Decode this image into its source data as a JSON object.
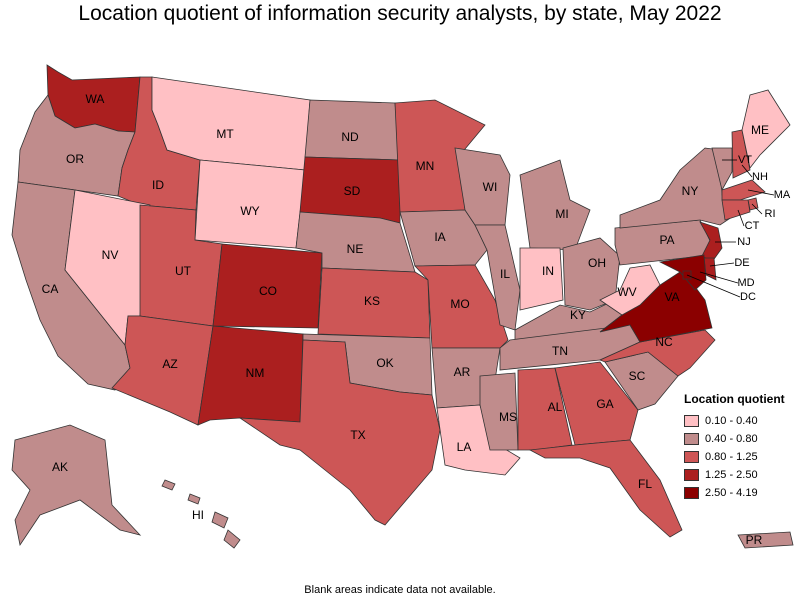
{
  "title": "Location quotient of information security analysts, by state, May 2022",
  "footnote": "Blank areas indicate data not available.",
  "legend": {
    "title": "Location quotient",
    "items": [
      {
        "label": "0.10 - 0.40",
        "color": "#ffc0c4"
      },
      {
        "label": "0.40 - 0.80",
        "color": "#c08c8c"
      },
      {
        "label": "0.80 - 1.25",
        "color": "#cd5656"
      },
      {
        "label": "1.25 - 2.50",
        "color": "#ab1f1f"
      },
      {
        "label": "2.50 - 4.19",
        "color": "#8b0000"
      }
    ]
  },
  "states": [
    {
      "abbr": "WA",
      "bin": 3
    },
    {
      "abbr": "OR",
      "bin": 1
    },
    {
      "abbr": "CA",
      "bin": 1
    },
    {
      "abbr": "ID",
      "bin": 2
    },
    {
      "abbr": "NV",
      "bin": 0
    },
    {
      "abbr": "MT",
      "bin": 0
    },
    {
      "abbr": "WY",
      "bin": 0
    },
    {
      "abbr": "UT",
      "bin": 2
    },
    {
      "abbr": "AZ",
      "bin": 2
    },
    {
      "abbr": "CO",
      "bin": 3
    },
    {
      "abbr": "NM",
      "bin": 3
    },
    {
      "abbr": "ND",
      "bin": 1
    },
    {
      "abbr": "SD",
      "bin": 3
    },
    {
      "abbr": "NE",
      "bin": 1
    },
    {
      "abbr": "KS",
      "bin": 2
    },
    {
      "abbr": "OK",
      "bin": 1
    },
    {
      "abbr": "TX",
      "bin": 2
    },
    {
      "abbr": "MN",
      "bin": 2
    },
    {
      "abbr": "IA",
      "bin": 1
    },
    {
      "abbr": "MO",
      "bin": 2
    },
    {
      "abbr": "AR",
      "bin": 1
    },
    {
      "abbr": "LA",
      "bin": 0
    },
    {
      "abbr": "WI",
      "bin": 1
    },
    {
      "abbr": "IL",
      "bin": 1
    },
    {
      "abbr": "MI",
      "bin": 1
    },
    {
      "abbr": "IN",
      "bin": 0
    },
    {
      "abbr": "OH",
      "bin": 1
    },
    {
      "abbr": "KY",
      "bin": 1
    },
    {
      "abbr": "TN",
      "bin": 1
    },
    {
      "abbr": "MS",
      "bin": 1
    },
    {
      "abbr": "AL",
      "bin": 2
    },
    {
      "abbr": "GA",
      "bin": 2
    },
    {
      "abbr": "FL",
      "bin": 2
    },
    {
      "abbr": "SC",
      "bin": 1
    },
    {
      "abbr": "NC",
      "bin": 2
    },
    {
      "abbr": "VA",
      "bin": 4
    },
    {
      "abbr": "WV",
      "bin": 0
    },
    {
      "abbr": "PA",
      "bin": 1
    },
    {
      "abbr": "NY",
      "bin": 1
    },
    {
      "abbr": "VT",
      "bin": 1
    },
    {
      "abbr": "NH",
      "bin": 2
    },
    {
      "abbr": "ME",
      "bin": 0
    },
    {
      "abbr": "MA",
      "bin": 2
    },
    {
      "abbr": "RI",
      "bin": 2
    },
    {
      "abbr": "CT",
      "bin": 2
    },
    {
      "abbr": "NJ",
      "bin": 3
    },
    {
      "abbr": "DE",
      "bin": 3
    },
    {
      "abbr": "MD",
      "bin": 4
    },
    {
      "abbr": "DC",
      "bin": 4
    },
    {
      "abbr": "AK",
      "bin": 1
    },
    {
      "abbr": "HI",
      "bin": 1
    },
    {
      "abbr": "PR",
      "bin": 1
    }
  ]
}
